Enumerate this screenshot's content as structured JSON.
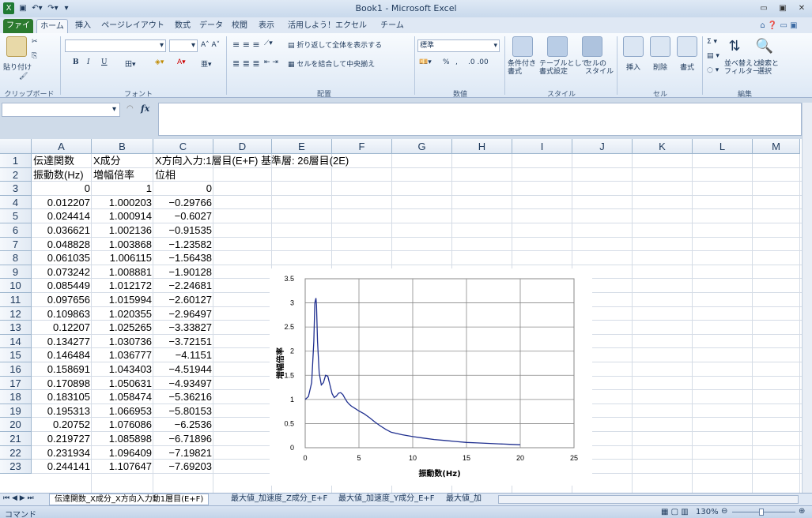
{
  "window": {
    "title": "Book1 - Microsoft Excel"
  },
  "tabs": [
    "ファイル",
    "ホーム",
    "挿入",
    "ページレイアウト",
    "数式",
    "データ",
    "校閲",
    "表示",
    "活用しよう！エクセル",
    "チーム"
  ],
  "ribbon": {
    "clipboard": {
      "paste": "貼り付け",
      "label": "クリップボード"
    },
    "font": {
      "label": "フォント",
      "bold": "B",
      "italic": "I",
      "underline": "U"
    },
    "alignment": {
      "wrap": "折り返して全体を表示する",
      "merge": "セルを結合して中央揃え",
      "label": "配置"
    },
    "number": {
      "format": "標準",
      "label": "数値",
      "percent": "%",
      "comma": ","
    },
    "styles": {
      "conditional": "条件付き\n書式",
      "table": "テーブルとして\n書式設定",
      "cell": "セルの\nスタイル",
      "label": "スタイル"
    },
    "cells": {
      "insert": "挿入",
      "delete": "削除",
      "format": "書式",
      "label": "セル"
    },
    "editing": {
      "sort": "並べ替えと\nフィルター",
      "find": "検索と\n選択",
      "label": "編集"
    }
  },
  "formula": {
    "fx": "fx"
  },
  "columns": [
    "A",
    "B",
    "C",
    "D",
    "E",
    "F",
    "G",
    "H",
    "I",
    "J",
    "K",
    "L",
    "M"
  ],
  "rows": [
    {
      "n": "1",
      "a": "伝達関数",
      "b": "X成分",
      "c": "X方向入力:1層目(E+F) 基準層: 26層目(2E)",
      "type": "text"
    },
    {
      "n": "2",
      "a": "振動数(Hz)",
      "b": "増幅倍率",
      "c": "位相",
      "type": "text"
    },
    {
      "n": "3",
      "a": "0",
      "b": "1",
      "c": "0"
    },
    {
      "n": "4",
      "a": "0.012207",
      "b": "1.000203",
      "c": "−0.29766"
    },
    {
      "n": "5",
      "a": "0.024414",
      "b": "1.000914",
      "c": "−0.6027"
    },
    {
      "n": "6",
      "a": "0.036621",
      "b": "1.002136",
      "c": "−0.91535"
    },
    {
      "n": "7",
      "a": "0.048828",
      "b": "1.003868",
      "c": "−1.23582"
    },
    {
      "n": "8",
      "a": "0.061035",
      "b": "1.006115",
      "c": "−1.56438"
    },
    {
      "n": "9",
      "a": "0.073242",
      "b": "1.008881",
      "c": "−1.90128"
    },
    {
      "n": "10",
      "a": "0.085449",
      "b": "1.012172",
      "c": "−2.24681"
    },
    {
      "n": "11",
      "a": "0.097656",
      "b": "1.015994",
      "c": "−2.60127"
    },
    {
      "n": "12",
      "a": "0.109863",
      "b": "1.020355",
      "c": "−2.96497"
    },
    {
      "n": "13",
      "a": "0.12207",
      "b": "1.025265",
      "c": "−3.33827"
    },
    {
      "n": "14",
      "a": "0.134277",
      "b": "1.030736",
      "c": "−3.72151"
    },
    {
      "n": "15",
      "a": "0.146484",
      "b": "1.036777",
      "c": "−4.1151"
    },
    {
      "n": "16",
      "a": "0.158691",
      "b": "1.043403",
      "c": "−4.51944"
    },
    {
      "n": "17",
      "a": "0.170898",
      "b": "1.050631",
      "c": "−4.93497"
    },
    {
      "n": "18",
      "a": "0.183105",
      "b": "1.058474",
      "c": "−5.36216"
    },
    {
      "n": "19",
      "a": "0.195313",
      "b": "1.066953",
      "c": "−5.80153"
    },
    {
      "n": "20",
      "a": "0.20752",
      "b": "1.076086",
      "c": "−6.2536"
    },
    {
      "n": "21",
      "a": "0.219727",
      "b": "1.085898",
      "c": "−6.71896"
    },
    {
      "n": "22",
      "a": "0.231934",
      "b": "1.096409",
      "c": "−7.19821"
    },
    {
      "n": "23",
      "a": "0.244141",
      "b": "1.107647",
      "c": "−7.69203"
    }
  ],
  "sheet_tabs": [
    "伝達関数_X成分_X方向入力動1層目(E+F)",
    "最大値_加速度_Z成分_E+F",
    "最大値_加速度_Y成分_E+F",
    "最大値_加"
  ],
  "status": {
    "mode": "コマンド",
    "zoom": "130%"
  },
  "chart_data": {
    "type": "line",
    "title": "",
    "xlabel": "振動数(Hz)",
    "ylabel": "増幅倍率",
    "xlim": [
      0,
      25
    ],
    "ylim": [
      0,
      3.5
    ],
    "xticks": [
      0,
      5,
      10,
      15,
      20,
      25
    ],
    "yticks": [
      0,
      0.5,
      1,
      1.5,
      2,
      2.5,
      3,
      3.5
    ],
    "grid": true,
    "color": "#1f2f8f",
    "x": [
      0,
      0.3,
      0.6,
      0.8,
      0.9,
      1.0,
      1.05,
      1.15,
      1.3,
      1.5,
      1.7,
      1.9,
      2.1,
      2.3,
      2.5,
      2.7,
      2.9,
      3.1,
      3.3,
      3.5,
      3.7,
      3.9,
      4.1,
      4.3,
      4.6,
      5.0,
      5.5,
      6.0,
      6.5,
      7.0,
      7.5,
      8.0,
      9.0,
      10,
      11,
      12,
      13,
      14,
      15,
      16,
      17,
      18,
      19,
      20
    ],
    "y": [
      1.0,
      1.06,
      1.35,
      2.2,
      3.0,
      3.1,
      2.95,
      2.2,
      1.55,
      1.3,
      1.35,
      1.5,
      1.48,
      1.3,
      1.12,
      1.04,
      1.07,
      1.13,
      1.14,
      1.1,
      1.02,
      0.95,
      0.9,
      0.86,
      0.82,
      0.76,
      0.7,
      0.62,
      0.53,
      0.45,
      0.38,
      0.32,
      0.27,
      0.23,
      0.2,
      0.17,
      0.15,
      0.13,
      0.11,
      0.1,
      0.09,
      0.08,
      0.07,
      0.06
    ]
  }
}
